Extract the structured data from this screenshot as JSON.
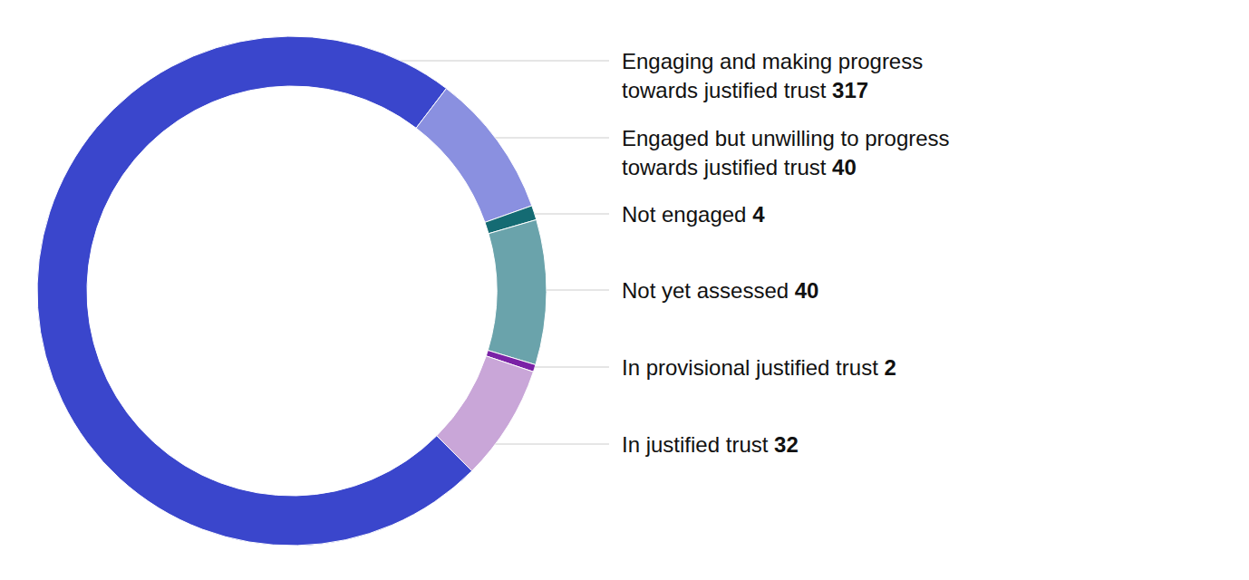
{
  "chart_data": {
    "type": "donut",
    "categories": [
      "Engaging and making progress towards justified trust",
      "Engaged but unwilling to progress towards justified trust",
      "Not engaged",
      "Not yet assessed",
      "In provisional justified trust",
      "In justified trust"
    ],
    "values": [
      317,
      40,
      4,
      40,
      2,
      32
    ],
    "colors": [
      "#3a46cc",
      "#8a90e0",
      "#146b73",
      "#6aa3ab",
      "#7a22a6",
      "#c9a6d8"
    ],
    "data_labels": true
  }
}
